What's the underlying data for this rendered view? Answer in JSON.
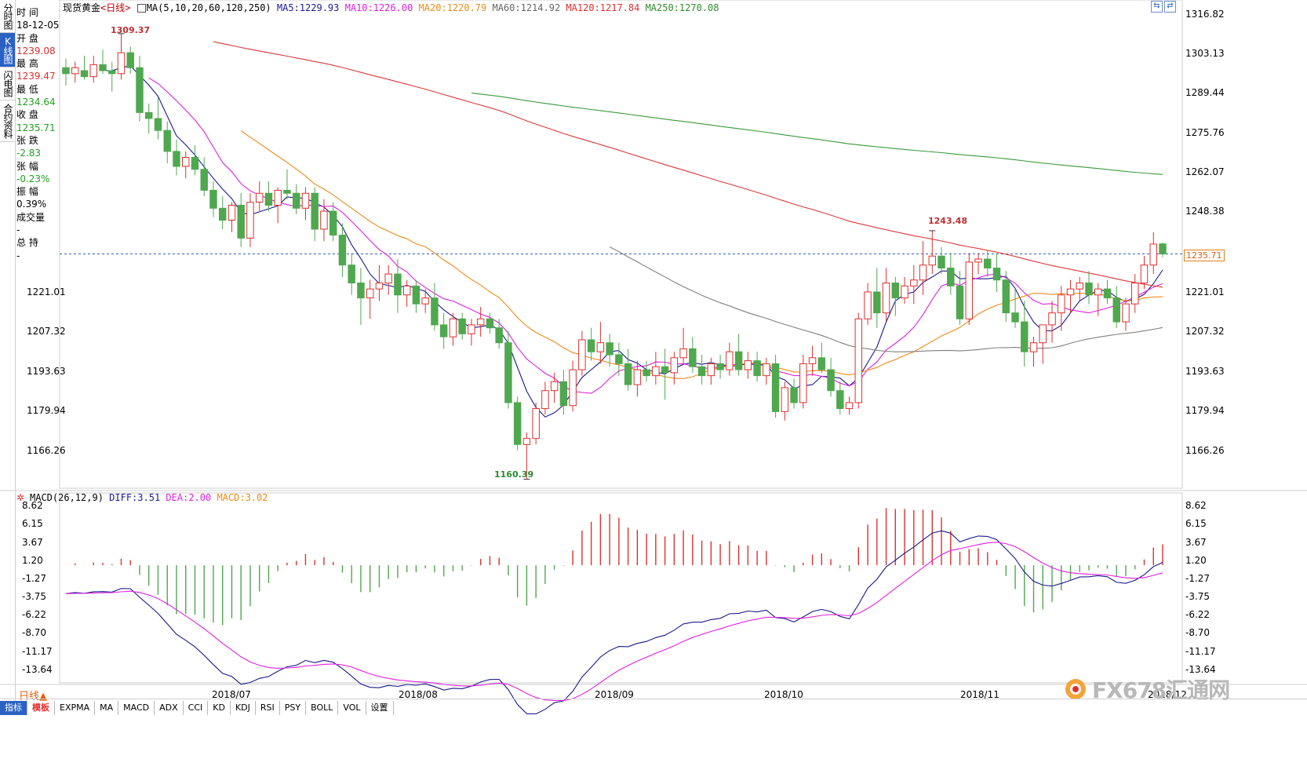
{
  "left_tabs": [
    "分时图",
    "K线图",
    "闪电图",
    "合约资料"
  ],
  "active_tab_index": 1,
  "info": {
    "time_label": "时 间",
    "time_value": "18-12-05",
    "open_label": "开 盘",
    "open_value": "1239.08",
    "high_label": "最 高",
    "high_value": "1239.47",
    "low_label": "最 低",
    "low_value": "1234.64",
    "close_label": "收 盘",
    "close_value": "1235.71",
    "change_label": "张 跌",
    "change_value": "-2.83",
    "pct_label": "张 幅",
    "pct_value": "-0.23%",
    "amp_label": "振 幅",
    "amp_value": "0.39%",
    "vol_label": "成交量",
    "vol_value": "-",
    "oi_label": "总 持",
    "oi_value": "-"
  },
  "header": {
    "title": "现货黄金",
    "period_tag": "<日线>",
    "ma_params": "MA(5,10,20,60,120,250)",
    "ma5": "MA5:1229.93",
    "ma10": "MA10:1226.00",
    "ma20": "MA20:1220.79",
    "ma60": "MA60:1214.92",
    "ma120": "MA120:1217.84",
    "ma250": "MA250:1270.08"
  },
  "colors": {
    "up": "#e0302e",
    "down": "#4fa84f",
    "ma5": "#1a1a8a",
    "ma10": "#e020e0",
    "ma20": "#f08a1a",
    "ma60": "#808080",
    "ma120": "#d83a3a",
    "ma250": "#3a9a3a",
    "diff": "#1a1a8a",
    "dea": "#e020e0"
  },
  "price_axis": [
    "1316.82",
    "1303.13",
    "1289.44",
    "1275.76",
    "1262.07",
    "1248.38",
    "1221.01",
    "1207.32",
    "1193.63",
    "1179.94",
    "1166.26"
  ],
  "left_price_axis": [
    "1221.01",
    "1207.32",
    "1193.63",
    "1179.94",
    "1166.26"
  ],
  "last_price_tag": "1235.71",
  "peak_labels": {
    "high1": "1309.37",
    "low1": "1160.39",
    "high2": "1243.48"
  },
  "macd": {
    "title": "MACD(26,12,9)",
    "diff": "DIFF:3.51",
    "dea": "DEA:2.00",
    "macd": "MACD:3.02",
    "axis": [
      "8.62",
      "6.15",
      "3.67",
      "1.20",
      "-1.27",
      "-3.75",
      "-6.22",
      "-8.70",
      "-11.17",
      "-13.64"
    ]
  },
  "date_axis": [
    "2018/07",
    "2018/08",
    "2018/09",
    "2018/10",
    "2018/11",
    "2018/12"
  ],
  "period_label": "日线",
  "bottom_tabs": [
    "指标",
    "模板",
    "EXPMA",
    "MA",
    "MACD",
    "ADX",
    "CCI",
    "KD",
    "KDJ",
    "RSI",
    "PSY",
    "BOLL",
    "VOL",
    "设置"
  ],
  "watermark": "FX678汇通网",
  "chart_data": {
    "type": "candlestick",
    "title": "现货黄金<日线>",
    "ylim": [
      1160,
      1318
    ],
    "candles": [
      [
        1298,
        1301,
        1292,
        1296
      ],
      [
        1296,
        1300,
        1293,
        1298
      ],
      [
        1297,
        1302,
        1294,
        1295
      ],
      [
        1295,
        1302,
        1293,
        1299
      ],
      [
        1299,
        1304,
        1296,
        1297
      ],
      [
        1297,
        1300,
        1290,
        1296
      ],
      [
        1296,
        1309.37,
        1294,
        1303
      ],
      [
        1303,
        1305,
        1296,
        1298
      ],
      [
        1298,
        1302,
        1280,
        1283
      ],
      [
        1283,
        1286,
        1276,
        1281
      ],
      [
        1281,
        1288,
        1274,
        1277
      ],
      [
        1277,
        1280,
        1266,
        1270
      ],
      [
        1270,
        1274,
        1262,
        1265
      ],
      [
        1265,
        1270,
        1261,
        1268
      ],
      [
        1268,
        1272,
        1262,
        1264
      ],
      [
        1264,
        1268,
        1255,
        1257
      ],
      [
        1257,
        1260,
        1248,
        1251
      ],
      [
        1251,
        1255,
        1244,
        1247
      ],
      [
        1247,
        1253,
        1243,
        1252
      ],
      [
        1252,
        1256,
        1238,
        1241
      ],
      [
        1241,
        1256,
        1238,
        1253
      ],
      [
        1253,
        1260,
        1250,
        1256
      ],
      [
        1256,
        1260,
        1250,
        1252
      ],
      [
        1252,
        1258,
        1246,
        1257
      ],
      [
        1257,
        1264,
        1254,
        1256
      ],
      [
        1256,
        1259,
        1249,
        1251
      ],
      [
        1251,
        1258,
        1247,
        1256
      ],
      [
        1256,
        1258,
        1240,
        1244
      ],
      [
        1244,
        1254,
        1240,
        1250
      ],
      [
        1250,
        1253,
        1240,
        1242
      ],
      [
        1242,
        1246,
        1228,
        1232
      ],
      [
        1232,
        1236,
        1222,
        1226
      ],
      [
        1226,
        1231,
        1212,
        1221
      ],
      [
        1221,
        1227,
        1214,
        1224
      ],
      [
        1224,
        1232,
        1220,
        1226
      ],
      [
        1226,
        1232,
        1222,
        1229
      ],
      [
        1229,
        1234,
        1216,
        1222
      ],
      [
        1222,
        1227,
        1218,
        1225
      ],
      [
        1225,
        1227,
        1216,
        1219
      ],
      [
        1219,
        1224,
        1216,
        1221
      ],
      [
        1221,
        1226,
        1210,
        1212
      ],
      [
        1212,
        1216,
        1204,
        1208
      ],
      [
        1208,
        1216,
        1205,
        1214
      ],
      [
        1214,
        1216,
        1207,
        1209
      ],
      [
        1209,
        1214,
        1205,
        1212
      ],
      [
        1212,
        1218,
        1208,
        1214
      ],
      [
        1214,
        1216,
        1209,
        1211
      ],
      [
        1211,
        1214,
        1204,
        1206
      ],
      [
        1206,
        1210,
        1184,
        1186
      ],
      [
        1186,
        1188,
        1170,
        1172
      ],
      [
        1172,
        1176,
        1160.39,
        1174
      ],
      [
        1174,
        1186,
        1172,
        1184
      ],
      [
        1184,
        1193,
        1182,
        1190
      ],
      [
        1190,
        1196,
        1186,
        1193
      ],
      [
        1193,
        1197,
        1182,
        1185
      ],
      [
        1185,
        1200,
        1183,
        1197
      ],
      [
        1197,
        1210,
        1195,
        1207
      ],
      [
        1207,
        1211,
        1200,
        1203
      ],
      [
        1203,
        1213,
        1199,
        1206
      ],
      [
        1206,
        1209,
        1198,
        1202
      ],
      [
        1202,
        1206,
        1195,
        1199
      ],
      [
        1199,
        1204,
        1190,
        1192
      ],
      [
        1192,
        1200,
        1188,
        1197
      ],
      [
        1197,
        1200,
        1193,
        1195
      ],
      [
        1195,
        1203,
        1192,
        1198
      ],
      [
        1198,
        1204,
        1187,
        1196
      ],
      [
        1196,
        1203,
        1192,
        1201
      ],
      [
        1201,
        1211,
        1199,
        1204
      ],
      [
        1204,
        1208,
        1196,
        1198
      ],
      [
        1198,
        1202,
        1192,
        1195
      ],
      [
        1195,
        1201,
        1192,
        1199
      ],
      [
        1199,
        1202,
        1194,
        1197
      ],
      [
        1197,
        1206,
        1195,
        1203
      ],
      [
        1203,
        1209,
        1195,
        1197
      ],
      [
        1197,
        1203,
        1194,
        1200
      ],
      [
        1200,
        1203,
        1193,
        1195
      ],
      [
        1195,
        1201,
        1192,
        1199
      ],
      [
        1199,
        1202,
        1181,
        1183
      ],
      [
        1183,
        1193,
        1180,
        1191
      ],
      [
        1191,
        1194,
        1184,
        1186
      ],
      [
        1186,
        1202,
        1184,
        1199
      ],
      [
        1199,
        1205,
        1195,
        1201
      ],
      [
        1201,
        1206,
        1196,
        1197
      ],
      [
        1197,
        1201,
        1188,
        1190
      ],
      [
        1190,
        1193,
        1182,
        1184
      ],
      [
        1184,
        1188,
        1182,
        1186
      ],
      [
        1186,
        1216,
        1184,
        1214
      ],
      [
        1214,
        1226,
        1212,
        1223
      ],
      [
        1223,
        1231,
        1211,
        1216
      ],
      [
        1216,
        1231,
        1213,
        1226
      ],
      [
        1226,
        1228,
        1215,
        1221
      ],
      [
        1221,
        1228,
        1219,
        1225
      ],
      [
        1225,
        1232,
        1219,
        1227
      ],
      [
        1227,
        1240,
        1222,
        1232
      ],
      [
        1232,
        1243.48,
        1229,
        1235
      ],
      [
        1235,
        1238,
        1229,
        1231
      ],
      [
        1231,
        1236,
        1222,
        1225
      ],
      [
        1225,
        1230,
        1212,
        1214
      ],
      [
        1214,
        1236,
        1212,
        1233
      ],
      [
        1233,
        1236,
        1229,
        1234
      ],
      [
        1234,
        1237,
        1228,
        1231
      ],
      [
        1231,
        1236,
        1223,
        1227
      ],
      [
        1227,
        1230,
        1213,
        1216
      ],
      [
        1216,
        1224,
        1211,
        1213
      ],
      [
        1213,
        1220,
        1198,
        1203
      ],
      [
        1203,
        1208,
        1198,
        1206
      ],
      [
        1206,
        1212,
        1199,
        1212
      ],
      [
        1212,
        1220,
        1206,
        1216
      ],
      [
        1216,
        1225,
        1210,
        1222
      ],
      [
        1222,
        1227,
        1216,
        1224
      ],
      [
        1224,
        1228,
        1220,
        1226
      ],
      [
        1226,
        1230,
        1219,
        1222
      ],
      [
        1222,
        1226,
        1215,
        1224
      ],
      [
        1224,
        1227,
        1219,
        1221
      ],
      [
        1221,
        1225,
        1211,
        1213
      ],
      [
        1213,
        1221,
        1210,
        1219
      ],
      [
        1219,
        1229,
        1216,
        1226
      ],
      [
        1226,
        1235,
        1224,
        1232
      ],
      [
        1232,
        1243,
        1229,
        1239
      ],
      [
        1239.08,
        1239.47,
        1234.64,
        1235.71
      ]
    ]
  }
}
